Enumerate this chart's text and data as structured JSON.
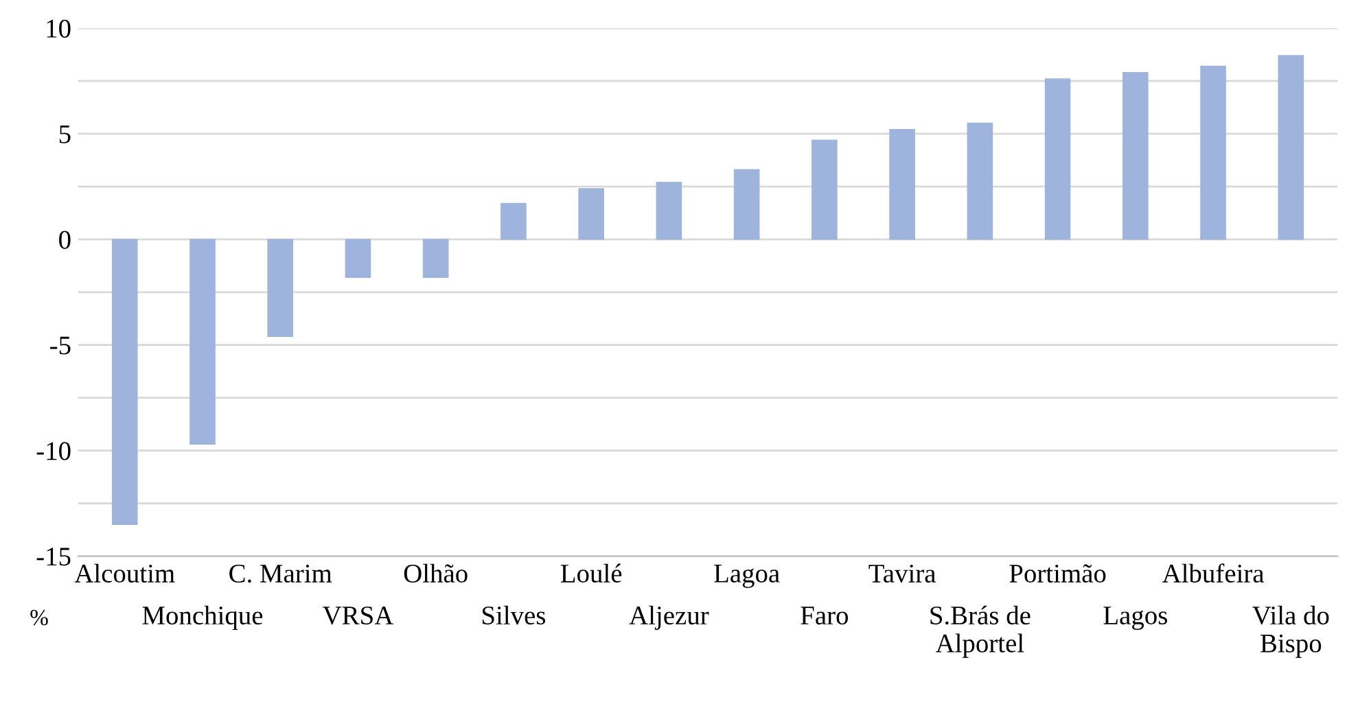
{
  "chart_data": {
    "type": "bar",
    "categories": [
      "Alcoutim",
      "Monchique",
      "C. Marim",
      "VRSA",
      "Olhão",
      "Silves",
      "Loulé",
      "Aljezur",
      "Lagoa",
      "Faro",
      "Tavira",
      "S.Brás de\nAlportel",
      "Portimão",
      "Lagos",
      "Albufeira",
      "Vila do\nBispo"
    ],
    "values": [
      -13.5,
      -9.7,
      -4.6,
      -1.8,
      -1.8,
      1.7,
      2.4,
      2.7,
      3.3,
      4.7,
      5.2,
      5.5,
      7.6,
      7.9,
      8.2,
      8.7
    ],
    "color": "#9fb4dc",
    "ylim": [
      -15,
      10
    ],
    "yticks": [
      -15,
      {
        "value": -12.5,
        "label": null
      },
      -10,
      {
        "value": -7.5,
        "label": null
      },
      -5,
      {
        "value": -2.5,
        "label": null
      },
      0,
      {
        "value": 2.5,
        "label": null
      },
      5,
      {
        "value": 7.5,
        "label": null
      },
      10
    ],
    "grid": "y",
    "annotations": [
      "%"
    ]
  }
}
